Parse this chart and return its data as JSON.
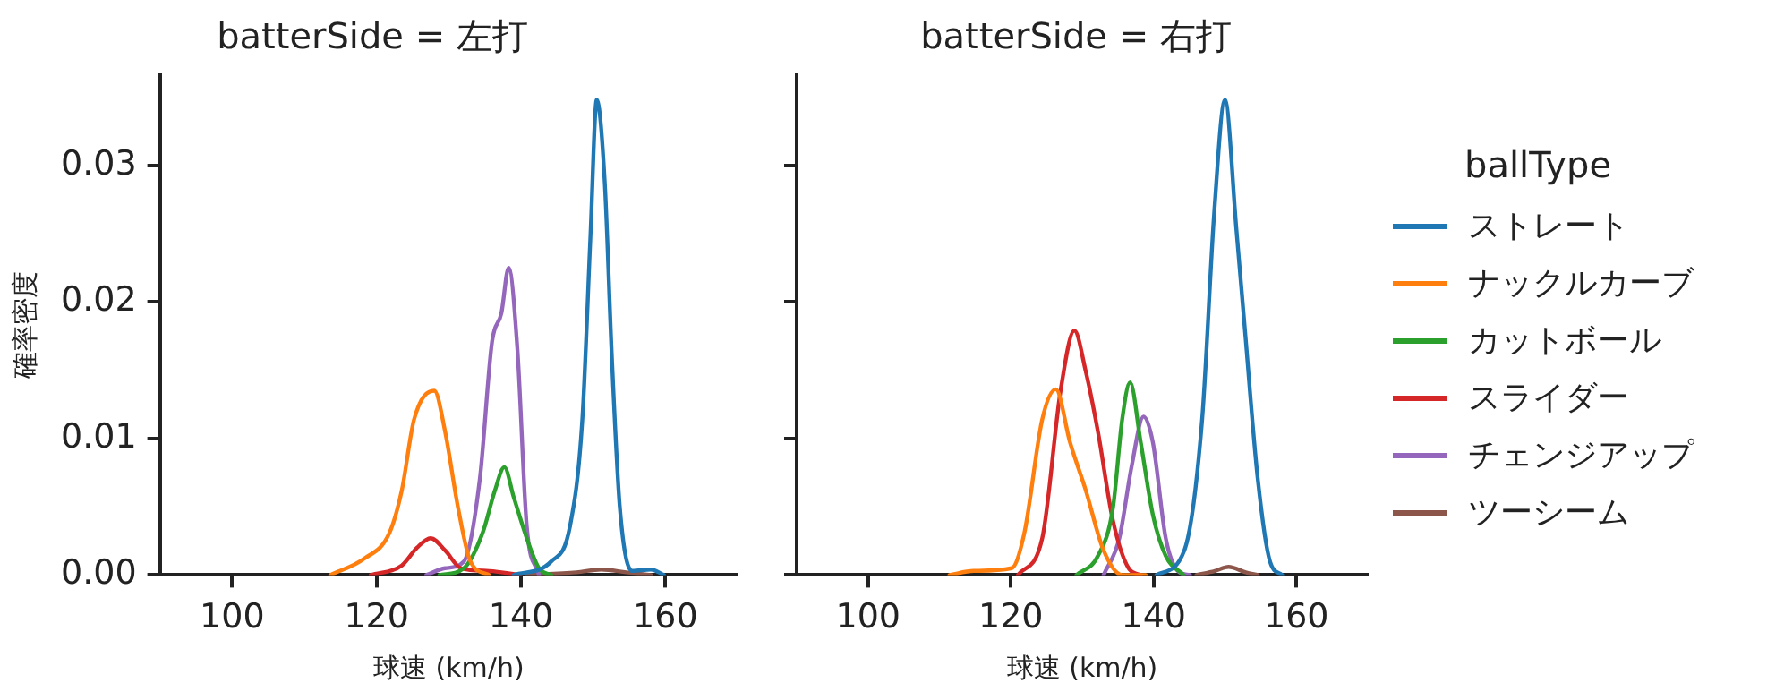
{
  "chart_data": [
    {
      "type": "line",
      "title": "batterSide = 左打",
      "xlabel": "球速 (km/h)",
      "ylabel": "確率密度",
      "xlim": [
        90,
        170
      ],
      "xticks": [
        100,
        120,
        140,
        160
      ],
      "ylim": [
        0,
        0.0366
      ],
      "yticks": [
        {
          "value": 0,
          "label": "0.00"
        },
        0.01,
        0.02,
        0.03
      ],
      "grid": false,
      "legend": false,
      "marker": "none",
      "line_style": "solid",
      "series": [
        {
          "color": "#1f77b4",
          "x": [
            139.0,
            144.2,
            146.8,
            148.5,
            149.6,
            150.5,
            151.6,
            152.6,
            153.7,
            155.4,
            158.0,
            159.8
          ],
          "values": [
            0,
            0.001,
            0.0036,
            0.0114,
            0.0245,
            0.0348,
            0.0288,
            0.0158,
            0.0049,
            0.0003,
            0.0004,
            0
          ]
        },
        {
          "color": "#ff7f0e",
          "x": [
            113.6,
            118.3,
            121.8,
            123.5,
            125.2,
            128.0,
            129.5,
            131.3,
            133.0,
            135.6
          ],
          "values": [
            0,
            0.0012,
            0.0031,
            0.0062,
            0.0114,
            0.0135,
            0.0105,
            0.0049,
            0.001,
            0
          ]
        },
        {
          "color": "#2ca02c",
          "x": [
            128.7,
            132.1,
            134.7,
            136.4,
            137.7,
            139.0,
            140.8,
            142.5,
            144.2
          ],
          "values": [
            0,
            0.0005,
            0.0031,
            0.0062,
            0.0079,
            0.0057,
            0.0027,
            0.0005,
            0
          ]
        },
        {
          "color": "#d62728",
          "x": [
            119.2,
            123.5,
            125.6,
            127.5,
            129.5,
            131.7,
            135.6,
            139.9
          ],
          "values": [
            0,
            0.0007,
            0.002,
            0.0027,
            0.0018,
            0.0005,
            0.0003,
            0
          ]
        },
        {
          "color": "#9467bd",
          "x": [
            126.9,
            129.5,
            132.1,
            134.3,
            136.0,
            137.3,
            138.3,
            139.5,
            140.8,
            142.5
          ],
          "values": [
            0,
            0.0005,
            0.001,
            0.007,
            0.0171,
            0.0192,
            0.0225,
            0.0166,
            0.0036,
            0
          ]
        },
        {
          "color": "#8c564b",
          "x": [
            140.8,
            147.7,
            151.1,
            154.6,
            158.0
          ],
          "values": [
            0,
            0.0002,
            0.0004,
            0.0002,
            0
          ]
        }
      ]
    },
    {
      "type": "line",
      "title": "batterSide = 右打",
      "xlabel": "球速 (km/h)",
      "xlim": [
        90,
        170
      ],
      "xticks": [
        100,
        120,
        140,
        160
      ],
      "ylim": [
        0,
        0.0366
      ],
      "yticks": [
        0,
        0.01,
        0.02,
        0.03
      ],
      "tick_labels": "x",
      "grid": false,
      "legend": "right",
      "legend_title": "ballType",
      "marker": "none",
      "line_style": "solid",
      "series": [
        {
          "name": "ストレート",
          "color": "#1f77b4",
          "x": [
            140.4,
            144.3,
            146.8,
            148.5,
            150.0,
            151.6,
            152.8,
            154.6,
            156.3,
            158.0
          ],
          "values": [
            0,
            0.0018,
            0.0114,
            0.0266,
            0.0348,
            0.0253,
            0.0179,
            0.007,
            0.001,
            0
          ]
        },
        {
          "name": "ナックルカーブ",
          "color": "#ff7f0e",
          "x": [
            111.4,
            114.8,
            120.1,
            121.9,
            124.4,
            126.3,
            128.3,
            130.5,
            133.0,
            135.6,
            138.9
          ],
          "values": [
            0,
            0.0003,
            0.0005,
            0.0031,
            0.0114,
            0.0136,
            0.0097,
            0.0062,
            0.0018,
            0,
            0
          ]
        },
        {
          "name": "カットボール",
          "color": "#2ca02c",
          "x": [
            129.2,
            132.2,
            134.3,
            135.6,
            136.7,
            138.2,
            139.9,
            141.7,
            144.2
          ],
          "values": [
            0,
            0.0014,
            0.0049,
            0.0114,
            0.0141,
            0.0097,
            0.0044,
            0.0014,
            0
          ]
        },
        {
          "name": "スライダー",
          "color": "#d62728",
          "x": [
            121.0,
            124.4,
            127.0,
            128.9,
            130.5,
            132.2,
            134.3,
            136.5,
            138.2
          ],
          "values": [
            0,
            0.0027,
            0.0136,
            0.0179,
            0.0149,
            0.0105,
            0.004,
            0.0005,
            0
          ]
        },
        {
          "name": "チェンジアップ",
          "color": "#9467bd",
          "x": [
            133.0,
            135.2,
            136.9,
            138.6,
            139.9,
            141.7,
            143.4,
            145.1
          ],
          "values": [
            0,
            0.0027,
            0.0079,
            0.0116,
            0.0097,
            0.0027,
            0.0003,
            0
          ]
        },
        {
          "name": "ツーシーム",
          "color": "#8c564b",
          "x": [
            146.0,
            148.6,
            150.5,
            152.9,
            154.6
          ],
          "values": [
            0,
            0.0003,
            0.0006,
            0.0002,
            0
          ]
        }
      ]
    }
  ]
}
